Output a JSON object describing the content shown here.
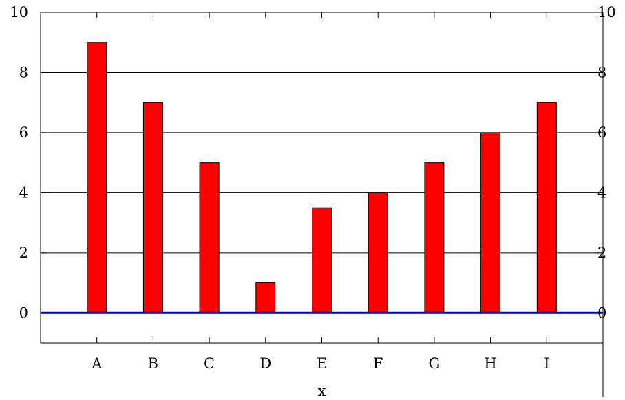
{
  "chart_data": {
    "type": "bar",
    "categories": [
      "A",
      "B",
      "C",
      "D",
      "E",
      "F",
      "G",
      "H",
      "I"
    ],
    "values": [
      9,
      7,
      5,
      1,
      3.5,
      4,
      5,
      6,
      7
    ],
    "xlabel": "x",
    "ylabel": "",
    "ylim": [
      -1,
      10
    ],
    "yticks": [
      "0",
      "2",
      "4",
      "6",
      "8",
      "10"
    ],
    "y2ticks": [
      "0",
      "2",
      "4",
      "6",
      "8",
      "10"
    ],
    "grid": "horizontal",
    "bar_color": "#ff0000",
    "baseline_color": "#0000cc"
  }
}
